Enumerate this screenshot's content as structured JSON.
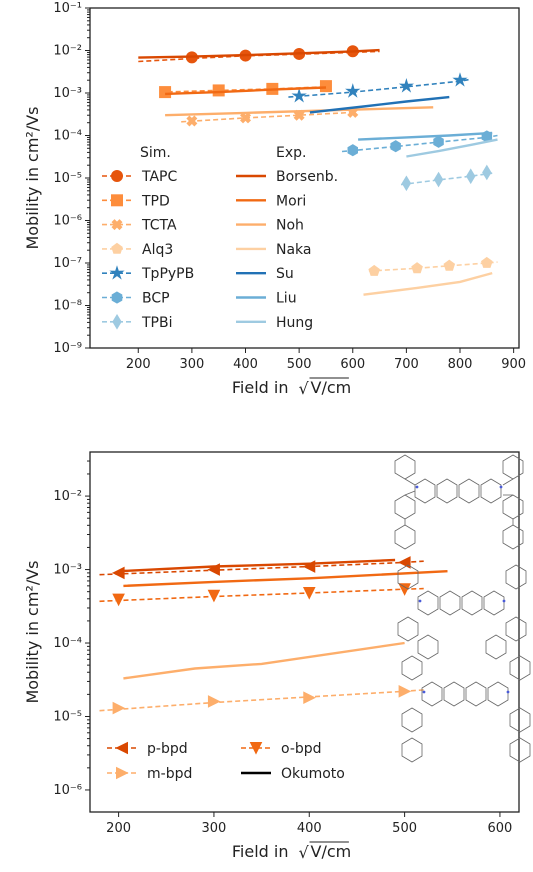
{
  "chart_data": [
    {
      "type": "line",
      "ylabel": "Mobility in cm²/Vs",
      "xlabel": "Field in √V/cm",
      "x_ticks": [
        200,
        300,
        400,
        500,
        600,
        700,
        800,
        900
      ],
      "xlim": [
        110,
        910
      ],
      "ylim_log10": [
        -9,
        -1
      ],
      "y_ticks": [
        "10⁻⁹",
        "10⁻⁸",
        "10⁻⁷",
        "10⁻⁶",
        "10⁻⁵",
        "10⁻⁴",
        "10⁻³",
        "10⁻²",
        "10⁻¹"
      ],
      "legend": {
        "sim_header": "Sim.",
        "exp_header": "Exp.",
        "placement": "lower-left"
      },
      "series": [
        {
          "name": "TAPC",
          "kind": "sim",
          "marker": "circle",
          "color": "#e6550d",
          "dash": true,
          "x": [
            200,
            300,
            400,
            500,
            600,
            650
          ],
          "y": [
            0.0055,
            0.0065,
            0.0075,
            0.0082,
            0.009,
            0.0095
          ],
          "markers_x": [
            300,
            400,
            500,
            600
          ],
          "markers_y": [
            0.0069,
            0.0076,
            0.0083,
            0.0096
          ]
        },
        {
          "name": "TPD",
          "kind": "sim",
          "marker": "square",
          "color": "#fd8d3c",
          "dash": true,
          "x": [
            240,
            350,
            450,
            550
          ],
          "y": [
            0.00105,
            0.00115,
            0.00125,
            0.0014
          ],
          "markers_x": [
            250,
            350,
            450,
            550
          ],
          "markers_y": [
            0.00105,
            0.00115,
            0.00125,
            0.00145
          ]
        },
        {
          "name": "TCTA",
          "kind": "sim",
          "marker": "x",
          "color": "#fdae6b",
          "dash": true,
          "x": [
            280,
            400,
            500,
            600
          ],
          "y": [
            0.00021,
            0.00026,
            0.0003,
            0.00035
          ],
          "markers_x": [
            300,
            400,
            500,
            600
          ],
          "markers_y": [
            0.00022,
            0.00026,
            0.0003,
            0.00035
          ]
        },
        {
          "name": "Alq3",
          "kind": "sim",
          "marker": "pentagon",
          "color": "#fdd0a2",
          "dash": true,
          "x": [
            630,
            720,
            780,
            850,
            870
          ],
          "y": [
            6.5e-08,
            7.5e-08,
            8.6e-08,
            1e-07,
            1.05e-07
          ],
          "markers_x": [
            640,
            720,
            780,
            850
          ],
          "markers_y": [
            6.5e-08,
            7.5e-08,
            8.6e-08,
            1e-07
          ]
        },
        {
          "name": "TpPyPB",
          "kind": "sim",
          "marker": "star",
          "color": "#3182bd",
          "dash": true,
          "x": [
            480,
            600,
            700,
            800,
            820
          ],
          "y": [
            0.0008,
            0.00105,
            0.0014,
            0.0019,
            0.0021
          ],
          "markers_x": [
            500,
            600,
            700,
            800
          ],
          "markers_y": [
            0.00085,
            0.0011,
            0.00145,
            0.002
          ]
        },
        {
          "name": "BCP",
          "kind": "sim",
          "marker": "hexagon",
          "color": "#6baed6",
          "dash": true,
          "x": [
            580,
            680,
            760,
            850,
            870
          ],
          "y": [
            4.2e-05,
            5.5e-05,
            7e-05,
            9e-05,
            0.0001
          ],
          "markers_x": [
            600,
            680,
            760,
            850
          ],
          "markers_y": [
            4.5e-05,
            5.6e-05,
            7.1e-05,
            9.5e-05
          ]
        },
        {
          "name": "TPBi",
          "kind": "sim",
          "marker": "diamond",
          "color": "#9ecae1",
          "dash": true,
          "x": [
            690,
            760,
            820,
            860
          ],
          "y": [
            7e-06,
            9e-06,
            1.1e-05,
            1.3e-05
          ],
          "markers_x": [
            700,
            760,
            820,
            850
          ],
          "markers_y": [
            7.5e-06,
            9.2e-06,
            1.1e-05,
            1.35e-05
          ]
        },
        {
          "name": "Borsenb.",
          "kind": "exp",
          "color": "#d94801",
          "x": [
            200,
            300,
            400,
            500,
            600,
            650
          ],
          "y": [
            0.0068,
            0.0072,
            0.0078,
            0.0086,
            0.0095,
            0.0102
          ]
        },
        {
          "name": "Mori",
          "kind": "exp",
          "color": "#f16913",
          "x": [
            250,
            350,
            450,
            550
          ],
          "y": [
            0.00095,
            0.00105,
            0.0012,
            0.00135
          ]
        },
        {
          "name": "Noh",
          "kind": "exp",
          "color": "#fdae6b",
          "x": [
            250,
            400,
            550,
            750
          ],
          "y": [
            0.0003,
            0.00034,
            0.00039,
            0.00046
          ]
        },
        {
          "name": "Naka",
          "kind": "exp",
          "color": "#fdd0a2",
          "x": [
            620,
            720,
            800,
            860
          ],
          "y": [
            1.8e-08,
            2.6e-08,
            3.6e-08,
            5.8e-08
          ]
        },
        {
          "name": "Su",
          "kind": "exp",
          "color": "#2171b5",
          "x": [
            520,
            620,
            700,
            780
          ],
          "y": [
            0.00035,
            0.00048,
            0.00063,
            0.0008
          ]
        },
        {
          "name": "Liu",
          "kind": "exp",
          "color": "#6baed6",
          "x": [
            610,
            700,
            780,
            860
          ],
          "y": [
            8e-05,
            9e-05,
            0.0001,
            0.000115
          ]
        },
        {
          "name": "Hung",
          "kind": "exp",
          "color": "#9ecae1",
          "x": [
            700,
            760,
            820,
            870
          ],
          "y": [
            3.2e-05,
            4.3e-05,
            6e-05,
            8e-05
          ]
        }
      ]
    },
    {
      "type": "line",
      "ylabel": "Mobility in cm²/Vs",
      "xlabel": "Field in √V/cm",
      "x_ticks": [
        200,
        300,
        400,
        500,
        600
      ],
      "xlim": [
        170,
        620
      ],
      "ylim_log10": [
        -6.3,
        -1.4
      ],
      "y_ticks": [
        "10⁻⁶",
        "10⁻⁵",
        "10⁻⁴",
        "10⁻³",
        "10⁻²"
      ],
      "legend": {
        "placement": "lower-left"
      },
      "series": [
        {
          "name": "p-bpd",
          "kind": "sim",
          "marker": "tri-left",
          "color": "#d94801",
          "dash": true,
          "x": [
            180,
            300,
            400,
            500,
            520
          ],
          "y": [
            0.00085,
            0.00098,
            0.0011,
            0.00125,
            0.0013
          ],
          "markers_x": [
            200,
            300,
            400,
            500
          ],
          "markers_y": [
            0.0009,
            0.001,
            0.0011,
            0.00125
          ]
        },
        {
          "name": "o-bpd",
          "kind": "sim",
          "marker": "tri-down",
          "color": "#f16913",
          "dash": true,
          "x": [
            180,
            300,
            400,
            500,
            520
          ],
          "y": [
            0.00037,
            0.00043,
            0.00048,
            0.00054,
            0.00055
          ],
          "markers_x": [
            200,
            300,
            400,
            500
          ],
          "markers_y": [
            0.00039,
            0.00044,
            0.00048,
            0.00054
          ]
        },
        {
          "name": "m-bpd",
          "kind": "sim",
          "marker": "tri-right",
          "color": "#fdae6b",
          "dash": true,
          "x": [
            180,
            300,
            400,
            500,
            520
          ],
          "y": [
            1.2e-05,
            1.55e-05,
            1.85e-05,
            2.2e-05,
            2.3e-05
          ],
          "markers_x": [
            200,
            300,
            400,
            500
          ],
          "markers_y": [
            1.3e-05,
            1.6e-05,
            1.8e-05,
            2.2e-05
          ]
        },
        {
          "name": "Okumoto",
          "kind": "exp",
          "color": "#000000",
          "legend_only": true
        },
        {
          "name": "p-bpd exp",
          "kind": "exp",
          "color": "#d94801",
          "legend": false,
          "x": [
            200,
            300,
            400,
            490
          ],
          "y": [
            0.00095,
            0.0011,
            0.0012,
            0.00135
          ]
        },
        {
          "name": "o-bpd exp",
          "kind": "exp",
          "color": "#f16913",
          "legend": false,
          "x": [
            205,
            300,
            400,
            545
          ],
          "y": [
            0.0006,
            0.00068,
            0.00076,
            0.00095
          ]
        },
        {
          "name": "m-bpd exp",
          "kind": "exp",
          "color": "#fdae6b",
          "legend": false,
          "x": [
            205,
            280,
            350,
            500
          ],
          "y": [
            3.3e-05,
            4.5e-05,
            5.2e-05,
            0.0001
          ]
        }
      ]
    }
  ]
}
